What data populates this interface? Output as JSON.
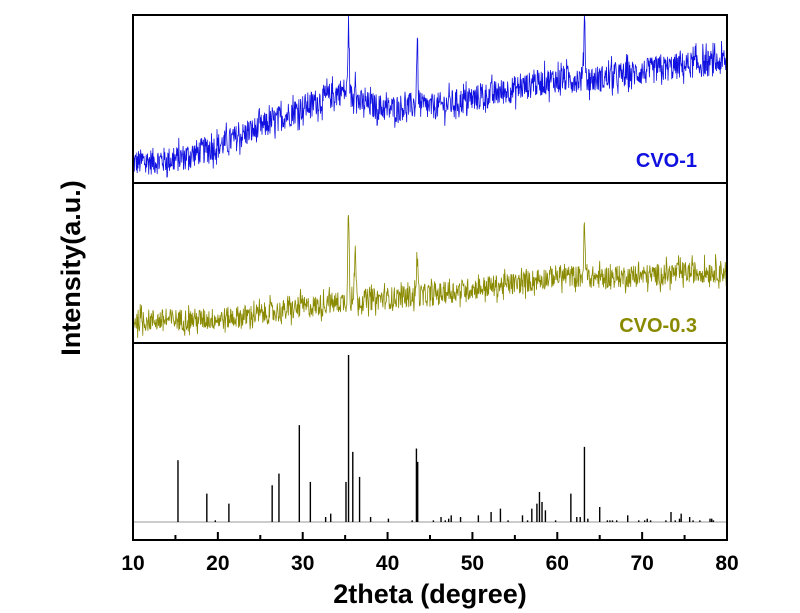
{
  "chart_data": {
    "type": "line",
    "title": "",
    "xlabel": "2theta (degree)",
    "ylabel": "Intensity(a.u.)",
    "xlim": [
      10,
      80
    ],
    "x_ticks": [
      10,
      20,
      30,
      40,
      50,
      60,
      70,
      80
    ],
    "x_minor_step": 5,
    "grid": false,
    "panels": [
      {
        "name": "CVO-1",
        "label": "CVO-1",
        "color": "#1010e0",
        "kind": "pattern",
        "baseline_points": [
          [
            10,
            0.12
          ],
          [
            15,
            0.14
          ],
          [
            20,
            0.22
          ],
          [
            25,
            0.33
          ],
          [
            30,
            0.45
          ],
          [
            34.8,
            0.55
          ],
          [
            36.5,
            0.48
          ],
          [
            40,
            0.44
          ],
          [
            43,
            0.46
          ],
          [
            45,
            0.45
          ],
          [
            50,
            0.5
          ],
          [
            55,
            0.56
          ],
          [
            60,
            0.62
          ],
          [
            65,
            0.62
          ],
          [
            70,
            0.66
          ],
          [
            75,
            0.7
          ],
          [
            80,
            0.72
          ]
        ],
        "noise": 0.08,
        "peaks": [
          [
            35.4,
            0.42
          ],
          [
            36.2,
            0.18
          ],
          [
            43.5,
            0.38
          ],
          [
            63.2,
            0.38
          ],
          [
            57.2,
            0.06
          ]
        ]
      },
      {
        "name": "CVO-0.3",
        "label": "CVO-0.3",
        "color": "#8a8a00",
        "kind": "pattern",
        "baseline_points": [
          [
            10,
            0.14
          ],
          [
            20,
            0.15
          ],
          [
            25,
            0.18
          ],
          [
            30,
            0.22
          ],
          [
            35,
            0.26
          ],
          [
            40,
            0.28
          ],
          [
            45,
            0.3
          ],
          [
            50,
            0.34
          ],
          [
            55,
            0.37
          ],
          [
            60,
            0.42
          ],
          [
            65,
            0.41
          ],
          [
            70,
            0.42
          ],
          [
            75,
            0.44
          ],
          [
            80,
            0.45
          ]
        ],
        "noise": 0.07,
        "peaks": [
          [
            35.4,
            0.58
          ],
          [
            36.2,
            0.33
          ],
          [
            43.5,
            0.27
          ],
          [
            63.2,
            0.3
          ],
          [
            29.8,
            0.06
          ],
          [
            33.0,
            0.05
          ]
        ]
      },
      {
        "name": "reference",
        "label": "",
        "color": "#000000",
        "kind": "sticks",
        "ylim": [
          0,
          100
        ],
        "sticks": [
          [
            15.3,
            37
          ],
          [
            18.7,
            17
          ],
          [
            19.7,
            1
          ],
          [
            21.3,
            11
          ],
          [
            26.4,
            22
          ],
          [
            27.2,
            29
          ],
          [
            29.6,
            58
          ],
          [
            30.9,
            24
          ],
          [
            32.7,
            3
          ],
          [
            33.3,
            5
          ],
          [
            35.1,
            24
          ],
          [
            35.4,
            100
          ],
          [
            35.9,
            42
          ],
          [
            36.7,
            27
          ],
          [
            38.0,
            3
          ],
          [
            40.1,
            2
          ],
          [
            42.9,
            1
          ],
          [
            43.4,
            44
          ],
          [
            43.55,
            36
          ],
          [
            45.4,
            1
          ],
          [
            46.3,
            3
          ],
          [
            46.8,
            1
          ],
          [
            47.2,
            2
          ],
          [
            47.5,
            4
          ],
          [
            48.6,
            3
          ],
          [
            50.7,
            4
          ],
          [
            52.2,
            6
          ],
          [
            53.3,
            8
          ],
          [
            54.2,
            1
          ],
          [
            55.9,
            4
          ],
          [
            56.5,
            1
          ],
          [
            57.0,
            8
          ],
          [
            57.6,
            11
          ],
          [
            57.9,
            18
          ],
          [
            58.2,
            12
          ],
          [
            58.6,
            7
          ],
          [
            59.8,
            1
          ],
          [
            61.6,
            17
          ],
          [
            62.3,
            3
          ],
          [
            62.7,
            3
          ],
          [
            63.2,
            45
          ],
          [
            63.6,
            2
          ],
          [
            65.0,
            9
          ],
          [
            65.9,
            1
          ],
          [
            66.2,
            1
          ],
          [
            66.5,
            1
          ],
          [
            67.0,
            1
          ],
          [
            68.3,
            4
          ],
          [
            69.6,
            1
          ],
          [
            70.3,
            1
          ],
          [
            70.6,
            2
          ],
          [
            71.0,
            1
          ],
          [
            72.8,
            1
          ],
          [
            73.4,
            6
          ],
          [
            73.9,
            1
          ],
          [
            74.4,
            2
          ],
          [
            74.6,
            5
          ],
          [
            75.6,
            3
          ],
          [
            76.0,
            1
          ],
          [
            76.8,
            1
          ],
          [
            78.0,
            2
          ],
          [
            78.2,
            2
          ],
          [
            78.4,
            1
          ]
        ]
      }
    ]
  }
}
